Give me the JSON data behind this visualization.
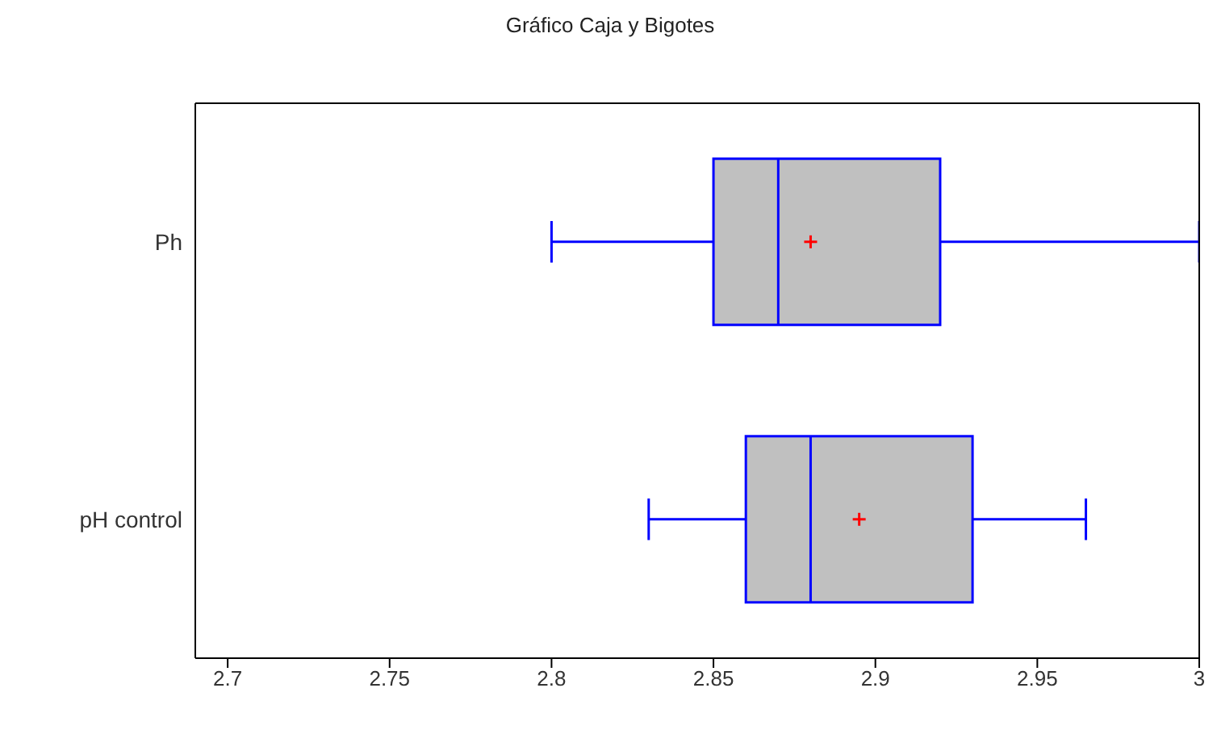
{
  "chart_data": {
    "type": "box",
    "title": "Gráfico Caja y Bigotes",
    "orientation": "horizontal",
    "categories": [
      "Ph",
      "pH control"
    ],
    "boxes": [
      {
        "low": 2.8,
        "q1": 2.85,
        "median": 2.87,
        "q3": 2.92,
        "high": 3.0,
        "mean": 2.88
      },
      {
        "low": 2.83,
        "q1": 2.86,
        "median": 2.88,
        "q3": 2.93,
        "high": 2.965,
        "mean": 2.895
      }
    ],
    "color": "#0000ff",
    "xlim": [
      2.69,
      3.0
    ],
    "xticks": [
      2.7,
      2.75,
      2.8,
      2.85,
      2.9,
      2.95,
      3
    ]
  }
}
